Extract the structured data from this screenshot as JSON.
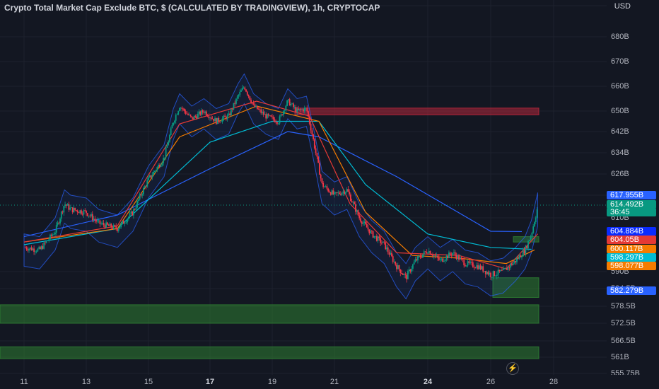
{
  "title": "Crypto Total Market Cap Exclude BTC, $ (CALCULATED BY TRADINGVIEW), 1h, CRYPTOCAP",
  "currency": "USD",
  "chart_data": {
    "type": "candlestick",
    "title": "Crypto Total Market Cap Exclude BTC, $ (CALCULATED BY TRADINGVIEW), 1h, CRYPTOCAP",
    "y_unit": "B",
    "ylim": [
      555.75,
      690
    ],
    "y_ticks": [
      "680B",
      "670B",
      "660B",
      "650B",
      "642B",
      "634B",
      "626B",
      "618B",
      "610B",
      "590B",
      "584.5B",
      "578.5B",
      "572.5B",
      "566.5B",
      "561B",
      "555.75B"
    ],
    "x_ticks": [
      "11",
      "13",
      "15",
      "17",
      "19",
      "21",
      "24",
      "26",
      "28"
    ],
    "bold_x_ticks": [
      "17",
      "24"
    ],
    "price_path": [
      [
        0,
        599
      ],
      [
        0.5,
        598
      ],
      [
        1,
        605
      ],
      [
        1.3,
        615
      ],
      [
        1.5,
        613
      ],
      [
        2,
        612
      ],
      [
        2.4,
        608
      ],
      [
        3,
        606
      ],
      [
        3.5,
        612
      ],
      [
        4,
        624
      ],
      [
        4.5,
        632
      ],
      [
        4.8,
        646
      ],
      [
        5,
        652
      ],
      [
        5.4,
        647
      ],
      [
        5.8,
        650
      ],
      [
        6.2,
        646
      ],
      [
        6.6,
        648
      ],
      [
        6.9,
        656
      ],
      [
        7.1,
        660
      ],
      [
        7.4,
        652
      ],
      [
        7.8,
        648
      ],
      [
        8.2,
        646
      ],
      [
        8.5,
        654
      ],
      [
        8.8,
        650
      ],
      [
        9.1,
        651
      ],
      [
        9.3,
        640
      ],
      [
        9.6,
        622
      ],
      [
        10,
        618
      ],
      [
        10.4,
        620
      ],
      [
        10.8,
        610
      ],
      [
        11.2,
        604
      ],
      [
        11.6,
        600
      ],
      [
        12,
        592
      ],
      [
        12.3,
        588
      ],
      [
        12.6,
        594
      ],
      [
        13,
        598
      ],
      [
        13.4,
        594
      ],
      [
        13.8,
        597
      ],
      [
        14.2,
        593
      ],
      [
        14.6,
        592
      ],
      [
        15,
        589
      ],
      [
        15.4,
        590
      ],
      [
        15.8,
        594
      ],
      [
        16.1,
        598
      ],
      [
        16.3,
        604
      ],
      [
        16.5,
        614
      ]
    ],
    "last_close": 614.492,
    "series": [
      {
        "name": "",
        "color": "#2962ff",
        "values": [
          [
            0,
            603
          ],
          [
            3,
            611
          ],
          [
            6,
            628
          ],
          [
            8.5,
            642
          ],
          [
            9.5,
            640
          ],
          [
            12,
            625
          ],
          [
            15,
            605
          ],
          [
            16,
            604.884
          ]
        ]
      },
      {
        "name": "",
        "color": "#00bcd4",
        "values": [
          [
            0,
            600
          ],
          [
            3,
            606
          ],
          [
            6,
            638
          ],
          [
            8,
            646
          ],
          [
            9.5,
            646
          ],
          [
            11,
            622
          ],
          [
            13,
            604
          ],
          [
            15,
            599
          ],
          [
            16.3,
            598.297
          ]
        ]
      },
      {
        "name": "",
        "color": "#f57c00",
        "values": [
          [
            0,
            601
          ],
          [
            3,
            606
          ],
          [
            5,
            640
          ],
          [
            7.5,
            652
          ],
          [
            9.5,
            646
          ],
          [
            11,
            612
          ],
          [
            12.5,
            596
          ],
          [
            14,
            595
          ],
          [
            15.5,
            593
          ],
          [
            16.4,
            598.077
          ]
        ]
      },
      {
        "name": "",
        "color": "#e53935",
        "values": [
          [
            0,
            601
          ],
          [
            3,
            607
          ],
          [
            5,
            645
          ],
          [
            7.5,
            654
          ],
          [
            9.2,
            648
          ],
          [
            10.5,
            615
          ],
          [
            12,
            597
          ],
          [
            14,
            596
          ],
          [
            15.5,
            591
          ],
          [
            16.5,
            604.05
          ]
        ]
      }
    ],
    "price_labels": [
      {
        "value": "617.955B",
        "color": "#2962ff"
      },
      {
        "value": "614.492B",
        "color": "#089981"
      },
      {
        "value": "36:45",
        "color": "#089981"
      },
      {
        "value": "604.884B",
        "color": "#0b2cff"
      },
      {
        "value": "604.05B",
        "color": "#e53935"
      },
      {
        "value": "600.117B",
        "color": "#f57c00"
      },
      {
        "value": "598.297B",
        "color": "#00bcd4"
      },
      {
        "value": "598.077B",
        "color": "#f57c00"
      },
      {
        "value": "582.279B",
        "color": "#2962ff"
      }
    ],
    "zones": [
      {
        "kind": "supply",
        "from": 648.5,
        "to": 651.2,
        "color": "#b2263a"
      },
      {
        "kind": "demand",
        "from": 601,
        "to": 603,
        "color": "#2e7d32"
      },
      {
        "kind": "demand",
        "from": 581.5,
        "to": 588,
        "color": "#2e7d32"
      },
      {
        "kind": "demand",
        "from": 572.5,
        "to": 579,
        "color": "#2e7d32"
      },
      {
        "kind": "demand",
        "from": 560.5,
        "to": 564.5,
        "color": "#2e7d32"
      }
    ]
  }
}
